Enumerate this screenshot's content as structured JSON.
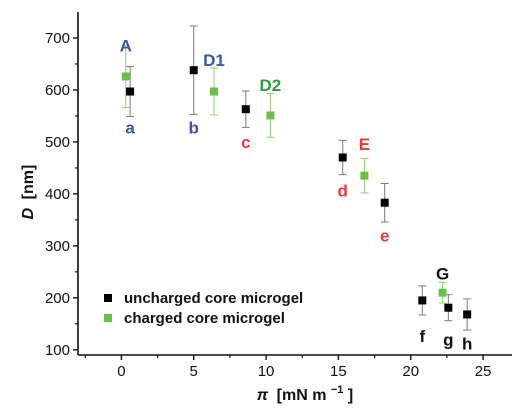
{
  "chart_data": {
    "type": "scatter",
    "title": "",
    "xlabel": {
      "symbol": "π",
      "unit": "[mN m",
      "exp": "−1",
      "close": "]"
    },
    "ylabel": {
      "symbol": "D",
      "unit": "[nm]"
    },
    "xlim": [
      -3,
      27
    ],
    "ylim": [
      90,
      750
    ],
    "xticks": [
      0,
      5,
      10,
      15,
      20,
      25
    ],
    "yticks": [
      100,
      200,
      300,
      400,
      500,
      600,
      700
    ],
    "grid": false,
    "legend": "bottom-left",
    "series": [
      {
        "name": "uncharged core microgel",
        "color": "#000000",
        "points": [
          {
            "x": 0.6,
            "y": 597,
            "err": 48
          },
          {
            "x": 5.0,
            "y": 638,
            "err": 85
          },
          {
            "x": 8.6,
            "y": 563,
            "err": 35
          },
          {
            "x": 15.3,
            "y": 470,
            "err": 33
          },
          {
            "x": 18.2,
            "y": 383,
            "err": 37
          },
          {
            "x": 20.8,
            "y": 195,
            "err": 28
          },
          {
            "x": 22.6,
            "y": 181,
            "err": 25
          },
          {
            "x": 23.9,
            "y": 168,
            "err": 30
          }
        ]
      },
      {
        "name": "charged core microgel",
        "color": "#6cc04a",
        "points": [
          {
            "x": 0.3,
            "y": 626,
            "err": 60
          },
          {
            "x": 6.4,
            "y": 597,
            "err": 45
          },
          {
            "x": 10.3,
            "y": 551,
            "err": 42
          },
          {
            "x": 16.8,
            "y": 435,
            "err": 33
          },
          {
            "x": 22.2,
            "y": 210,
            "err": 20
          }
        ]
      }
    ],
    "annotations": [
      {
        "text": "A",
        "x": 0.3,
        "y": 686,
        "color": "#3b55a7"
      },
      {
        "text": "a",
        "x": 0.6,
        "y": 528,
        "color": "#3b55a7"
      },
      {
        "text": "b",
        "x": 5.0,
        "y": 528,
        "color": "#3b55a7"
      },
      {
        "text": "D1",
        "x": 6.4,
        "y": 658,
        "color": "#3b55a7"
      },
      {
        "text": "c",
        "x": 8.6,
        "y": 500,
        "color": "#e83a3a"
      },
      {
        "text": "D2",
        "x": 10.3,
        "y": 610,
        "color": "#2e9a3e"
      },
      {
        "text": "E",
        "x": 16.8,
        "y": 496,
        "color": "#e83a3a"
      },
      {
        "text": "d",
        "x": 15.3,
        "y": 407,
        "color": "#e83a3a"
      },
      {
        "text": "e",
        "x": 18.2,
        "y": 320,
        "color": "#e83a3a"
      },
      {
        "text": "G",
        "x": 22.2,
        "y": 247,
        "color": "#111111"
      },
      {
        "text": "f",
        "x": 20.8,
        "y": 127,
        "color": "#111111"
      },
      {
        "text": "g",
        "x": 22.6,
        "y": 120,
        "color": "#111111"
      },
      {
        "text": "h",
        "x": 23.9,
        "y": 112,
        "color": "#111111"
      }
    ]
  }
}
